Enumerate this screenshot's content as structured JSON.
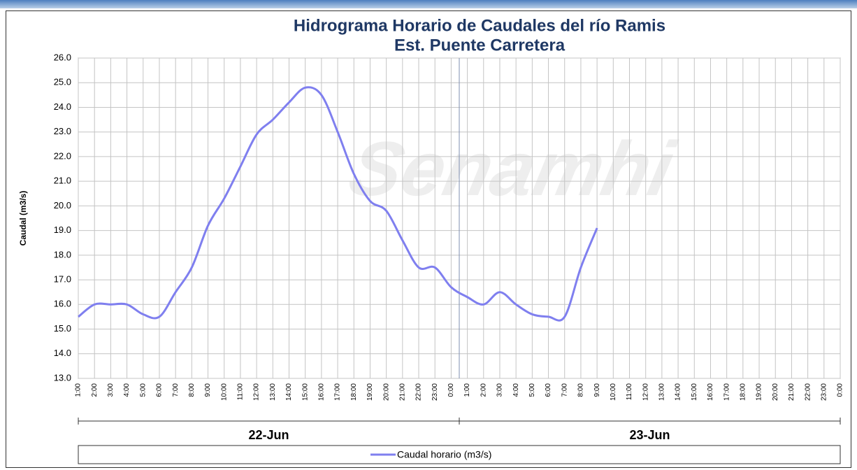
{
  "chart_data": {
    "type": "line",
    "title": "Hidrograma Horario de Caudales del río Ramis",
    "subtitle": "Est. Puente Carretera",
    "y_label": "Caudal (m3/s)",
    "watermark": "Senamhi",
    "categories": [
      "1:00",
      "2:00",
      "3:00",
      "4:00",
      "5:00",
      "6:00",
      "7:00",
      "8:00",
      "9:00",
      "10:00",
      "11:00",
      "12:00",
      "13:00",
      "14:00",
      "15:00",
      "16:00",
      "17:00",
      "18:00",
      "19:00",
      "20:00",
      "21:00",
      "22:00",
      "23:00",
      "0:00",
      "1:00",
      "2:00",
      "3:00",
      "4:00",
      "5:00",
      "6:00",
      "7:00",
      "8:00",
      "9:00",
      "10:00",
      "11:00",
      "12:00",
      "13:00",
      "14:00",
      "15:00",
      "16:00",
      "17:00",
      "18:00",
      "19:00",
      "20:00",
      "21:00",
      "22:00",
      "23:00",
      "0:00"
    ],
    "x_groups": [
      "22-Jun",
      "23-Jun"
    ],
    "series": [
      {
        "name": "Caudal horario (m3/s)",
        "color": "#7f7fef",
        "values": [
          15.5,
          16.0,
          16.0,
          16.0,
          15.6,
          15.5,
          16.5,
          17.5,
          19.2,
          20.3,
          21.6,
          22.9,
          23.5,
          24.2,
          24.8,
          24.5,
          23.0,
          21.3,
          20.2,
          19.8,
          18.6,
          17.5,
          17.5,
          16.7,
          16.3,
          16.0,
          16.5,
          16.0,
          15.6,
          15.5,
          15.5,
          17.5,
          19.1,
          null,
          null,
          null,
          null,
          null,
          null,
          null,
          null,
          null,
          null,
          null,
          null,
          null,
          null,
          null
        ]
      }
    ],
    "ylim": [
      13,
      26
    ],
    "yticks": [
      {
        "value": 13,
        "label": "13.0"
      },
      {
        "value": 14,
        "label": "14.0"
      },
      {
        "value": 15,
        "label": "15.0"
      },
      {
        "value": 16,
        "label": "16.0"
      },
      {
        "value": 17,
        "label": "17.0"
      },
      {
        "value": 18,
        "label": "18.0"
      },
      {
        "value": 19,
        "label": "19.0"
      },
      {
        "value": 20,
        "label": "20.0"
      },
      {
        "value": 21,
        "label": "21.0"
      },
      {
        "value": 22,
        "label": "22.0"
      },
      {
        "value": 23,
        "label": "23.0"
      },
      {
        "value": 24,
        "label": "24.0"
      },
      {
        "value": 25,
        "label": "25.0"
      },
      {
        "value": 26,
        "label": "26.0"
      }
    ],
    "grid": true
  }
}
